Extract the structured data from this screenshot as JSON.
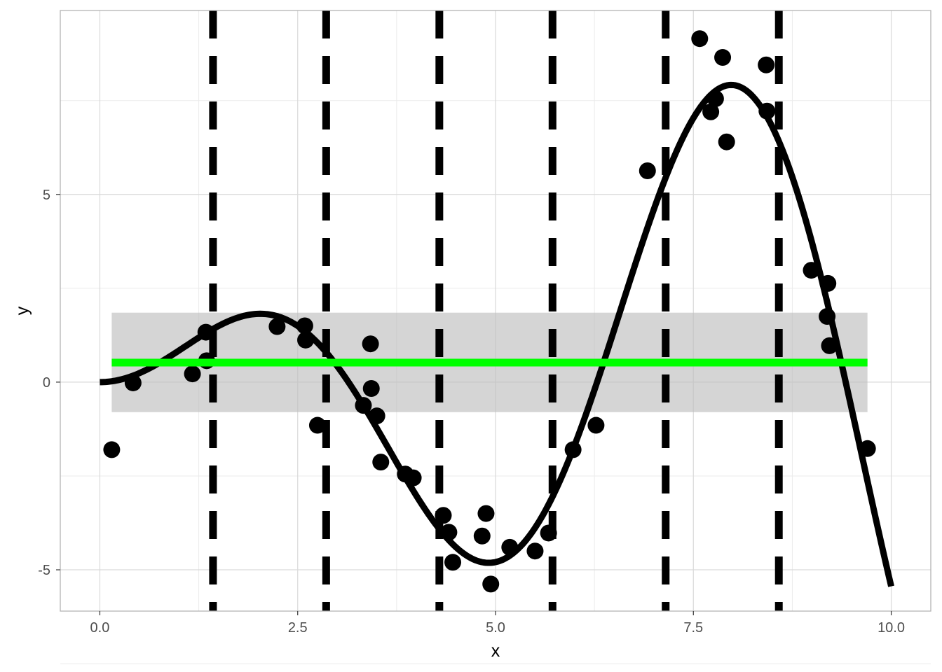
{
  "chart_data": {
    "type": "scatter",
    "title": "",
    "xlabel": "x",
    "ylabel": "y",
    "xlim": [
      -0.5,
      10.5
    ],
    "ylim": [
      -6.1,
      9.9
    ],
    "x_ticks": [
      0,
      2.5,
      5,
      7.5,
      10
    ],
    "x_tick_labels": [
      "0.0",
      "2.5",
      "5.0",
      "7.5",
      "10.0"
    ],
    "y_ticks": [
      -5,
      0,
      5
    ],
    "y_tick_labels": [
      "-5",
      "0",
      "5"
    ],
    "grid": true,
    "theme": "light",
    "colors": {
      "points": "#000000",
      "curve": "#000000",
      "mean_line": "#00ff00",
      "band": "#bebebe",
      "vlines": "#000000",
      "grid_major": "#d9d9d9",
      "grid_minor": "#ebebeb",
      "panel_border": "#b3b3b3"
    },
    "points": [
      {
        "x": 0.15,
        "y": -1.8
      },
      {
        "x": 0.42,
        "y": -0.02
      },
      {
        "x": 1.17,
        "y": 0.22
      },
      {
        "x": 1.34,
        "y": 1.33
      },
      {
        "x": 1.35,
        "y": 0.57
      },
      {
        "x": 2.24,
        "y": 1.48
      },
      {
        "x": 2.59,
        "y": 1.5
      },
      {
        "x": 2.6,
        "y": 1.12
      },
      {
        "x": 2.75,
        "y": -1.15
      },
      {
        "x": 3.33,
        "y": -0.62
      },
      {
        "x": 3.42,
        "y": 1.02
      },
      {
        "x": 3.43,
        "y": -0.17
      },
      {
        "x": 3.5,
        "y": -0.9
      },
      {
        "x": 3.55,
        "y": -2.13
      },
      {
        "x": 3.86,
        "y": -2.45
      },
      {
        "x": 3.96,
        "y": -2.55
      },
      {
        "x": 4.34,
        "y": -3.55
      },
      {
        "x": 4.41,
        "y": -4.0
      },
      {
        "x": 4.46,
        "y": -4.8
      },
      {
        "x": 4.83,
        "y": -4.1
      },
      {
        "x": 4.88,
        "y": -3.5
      },
      {
        "x": 4.94,
        "y": -5.38
      },
      {
        "x": 5.18,
        "y": -4.4
      },
      {
        "x": 5.5,
        "y": -4.5
      },
      {
        "x": 5.67,
        "y": -4.02
      },
      {
        "x": 5.98,
        "y": -1.8
      },
      {
        "x": 6.27,
        "y": -1.15
      },
      {
        "x": 6.92,
        "y": 5.63
      },
      {
        "x": 7.58,
        "y": 9.15
      },
      {
        "x": 7.72,
        "y": 7.2
      },
      {
        "x": 7.78,
        "y": 7.55
      },
      {
        "x": 7.87,
        "y": 8.65
      },
      {
        "x": 7.92,
        "y": 6.4
      },
      {
        "x": 8.42,
        "y": 8.45
      },
      {
        "x": 8.43,
        "y": 7.22
      },
      {
        "x": 8.99,
        "y": 2.98
      },
      {
        "x": 9.19,
        "y": 1.75
      },
      {
        "x": 9.2,
        "y": 2.63
      },
      {
        "x": 9.22,
        "y": 0.97
      },
      {
        "x": 9.7,
        "y": -1.77
      }
    ],
    "curve": {
      "name": "x * sin(x)",
      "x_range": [
        0,
        10
      ]
    },
    "mean_line": {
      "y": 0.52,
      "x_range": [
        0.15,
        9.7
      ]
    },
    "band": {
      "ymin": -0.8,
      "ymax": 1.85,
      "x_range": [
        0.15,
        9.7
      ]
    },
    "vlines": [
      1.43,
      2.86,
      4.29,
      5.72,
      7.15,
      8.58
    ]
  }
}
